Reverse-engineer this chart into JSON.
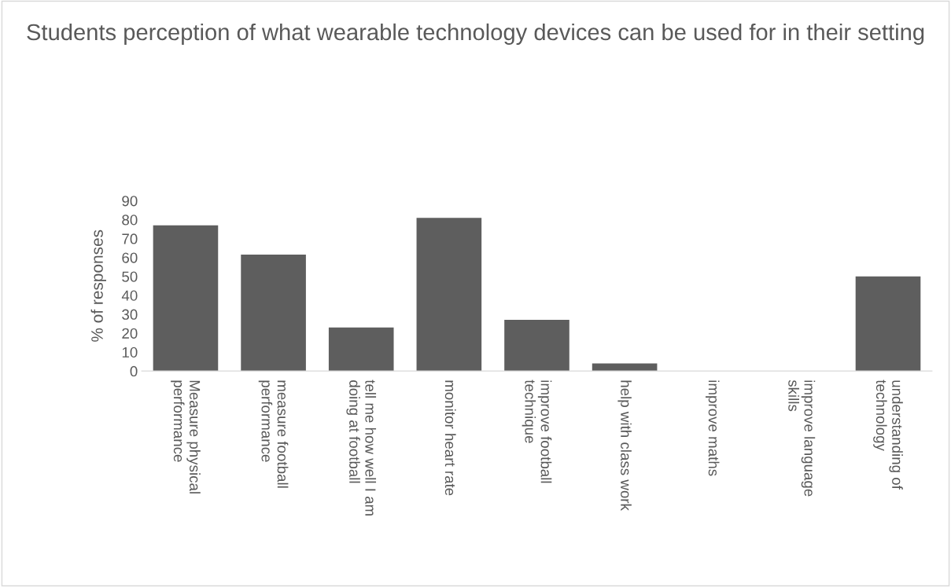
{
  "chart_data": {
    "type": "bar",
    "title": "Students perception of what wearable technology devices can be used for in their setting",
    "ylabel": "% of responses",
    "categories": [
      "Measure physical performance",
      "measure football performance",
      "tell me how well I am doing at football",
      "monitor heart rate",
      "improve football technique",
      "help with class work",
      "improve maths",
      "improve language skills",
      "understanding of technology"
    ],
    "values": [
      77,
      61.5,
      23,
      81,
      27,
      4,
      0,
      0,
      50
    ],
    "color": "#5e5e5e",
    "ylim": [
      0,
      90
    ],
    "yticks": [
      0,
      10,
      20,
      30,
      40,
      50,
      60,
      70,
      80,
      90
    ],
    "grid": false,
    "legend": false
  }
}
